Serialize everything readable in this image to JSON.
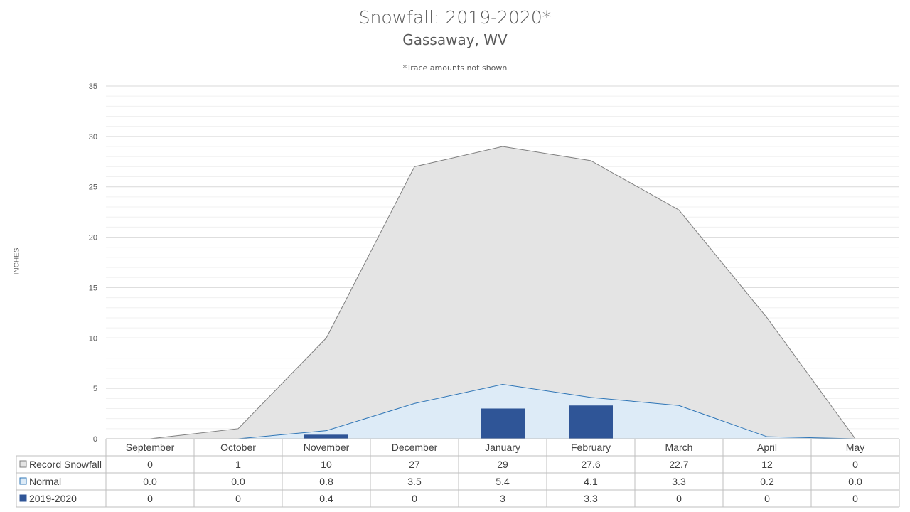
{
  "chart_data": {
    "type": "area",
    "title": "Snowfall: 2019-2020*",
    "subtitle": "Gassaway, WV",
    "note": "*Trace amounts not shown",
    "ylabel": "INCHES",
    "ylim": [
      0,
      35
    ],
    "yticks": [
      0,
      5,
      10,
      15,
      20,
      25,
      30,
      35
    ],
    "grid": true,
    "categories": [
      "September",
      "October",
      "November",
      "December",
      "January",
      "February",
      "March",
      "April",
      "May"
    ],
    "series": [
      {
        "name": "Record Snowfall",
        "kind": "area",
        "color": "#e4e4e4",
        "line_color": "#7f7f7f",
        "values": [
          0,
          1,
          10,
          27,
          29,
          27.6,
          22.7,
          12,
          0
        ],
        "labels": [
          "0",
          "1",
          "10",
          "27",
          "29",
          "27.6",
          "22.7",
          "12",
          "0"
        ]
      },
      {
        "name": "Normal",
        "kind": "area",
        "color": "#ddebf7",
        "line_color": "#2e75b6",
        "values": [
          0.0,
          0.0,
          0.8,
          3.5,
          5.4,
          4.1,
          3.3,
          0.2,
          0.0
        ],
        "labels": [
          "0.0",
          "0.0",
          "0.8",
          "3.5",
          "5.4",
          "4.1",
          "3.3",
          "0.2",
          "0.0"
        ]
      },
      {
        "name": "2019-2020",
        "kind": "bar",
        "color": "#2f5597",
        "values": [
          0,
          0,
          0.4,
          0,
          3,
          3.3,
          0,
          0,
          0
        ],
        "labels": [
          "0",
          "0",
          "0.4",
          "0",
          "3",
          "3.3",
          "0",
          "0",
          "0"
        ]
      }
    ]
  }
}
